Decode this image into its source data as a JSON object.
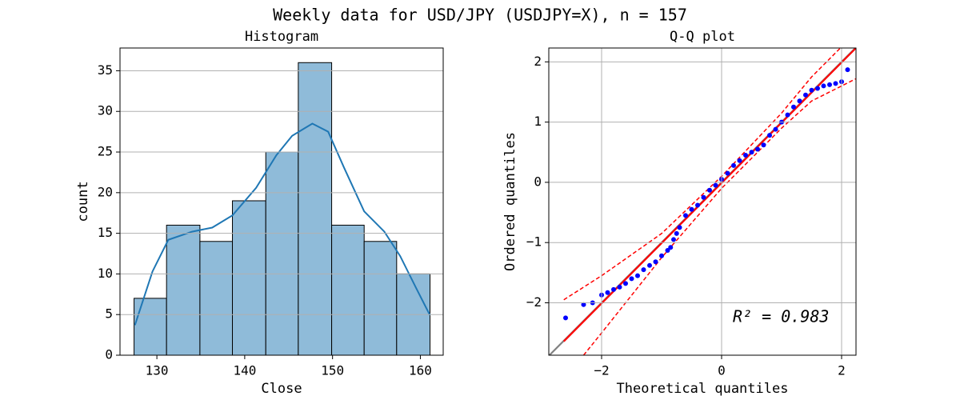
{
  "title": "Weekly data for USD/JPY (USDJPY=X), n = 157",
  "chart_data": [
    {
      "type": "histogram",
      "title": "Histogram",
      "xlabel": "Close",
      "ylabel": "count",
      "bins": [
        127.4,
        131.1,
        134.9,
        138.6,
        142.4,
        146.1,
        149.9,
        153.6,
        157.3,
        161.1
      ],
      "counts": [
        7,
        16,
        14,
        19,
        25,
        36,
        16,
        14,
        10
      ],
      "color": "#8fbbd9",
      "edgecolor": "#000000",
      "kde": {
        "color": "#1f77b4",
        "x": [
          127.5,
          129.5,
          131.3,
          134.0,
          136.3,
          138.6,
          141.3,
          143.6,
          145.4,
          147.7,
          149.5,
          151.3,
          153.6,
          155.9,
          157.7,
          159.5,
          161.1
        ],
        "values": [
          3.7,
          10.3,
          14.2,
          15.2,
          15.7,
          17.2,
          20.6,
          24.6,
          27.0,
          28.5,
          27.5,
          23.1,
          17.7,
          15.2,
          12.2,
          8.3,
          4.9
        ]
      },
      "xlim": [
        125.8,
        162.6
      ],
      "ylim": [
        0,
        37.8
      ],
      "xticks": [
        130,
        140,
        150,
        160
      ],
      "yticks": [
        0,
        5,
        10,
        15,
        20,
        25,
        30,
        35
      ],
      "grid": "y"
    },
    {
      "type": "scatter",
      "title": "Q-Q plot",
      "xlabel": "Theoretical quantiles",
      "ylabel": "Ordered quantiles",
      "series": [
        {
          "color": "#0000ff",
          "x": [
            -2.6,
            -2.3,
            -2.15,
            -2.0,
            -1.9,
            -1.8,
            -1.7,
            -1.6,
            -1.5,
            -1.4,
            -1.3,
            -1.2,
            -1.1,
            -1.0,
            -0.9,
            -0.85,
            -0.8,
            -0.75,
            -0.7,
            -0.6,
            -0.5,
            -0.4,
            -0.3,
            -0.2,
            -0.1,
            0,
            0.1,
            0.2,
            0.3,
            0.4,
            0.5,
            0.6,
            0.7,
            0.8,
            0.9,
            1.0,
            1.1,
            1.2,
            1.3,
            1.4,
            1.5,
            1.6,
            1.7,
            1.8,
            1.9,
            2.0,
            2.1
          ],
          "values": [
            -2.25,
            -2.03,
            -2.0,
            -1.87,
            -1.83,
            -1.78,
            -1.74,
            -1.68,
            -1.6,
            -1.55,
            -1.45,
            -1.38,
            -1.32,
            -1.22,
            -1.13,
            -1.08,
            -0.95,
            -0.85,
            -0.75,
            -0.55,
            -0.45,
            -0.38,
            -0.25,
            -0.13,
            -0.05,
            0.05,
            0.15,
            0.28,
            0.36,
            0.45,
            0.5,
            0.55,
            0.62,
            0.78,
            0.88,
            1.0,
            1.12,
            1.25,
            1.35,
            1.45,
            1.53,
            1.56,
            1.6,
            1.62,
            1.64,
            1.67,
            1.87
          ]
        }
      ],
      "lines": [
        {
          "color": "#808080",
          "style": "solid",
          "x": [
            -2.88,
            2.24
          ],
          "values": [
            -2.88,
            2.24
          ]
        },
        {
          "color": "#ff0000",
          "style": "solid",
          "x": [
            -2.63,
            2.24
          ],
          "values": [
            -2.64,
            2.23
          ]
        },
        {
          "color": "#ff0000",
          "style": "dashed",
          "x": [
            -2.63,
            -2.0,
            -1.0,
            0,
            1.0,
            1.5,
            2.0
          ],
          "values": [
            -1.95,
            -1.55,
            -0.85,
            0.1,
            1.15,
            1.75,
            2.25
          ]
        },
        {
          "color": "#ff0000",
          "style": "dashed",
          "x": [
            -2.3,
            -2.0,
            -1.0,
            0,
            1.0,
            1.5,
            2.24
          ],
          "values": [
            -2.87,
            -2.5,
            -1.25,
            -0.1,
            0.9,
            1.35,
            1.72
          ]
        }
      ],
      "annotation": "R² = 0.983",
      "xlim": [
        -2.88,
        2.24
      ],
      "ylim": [
        -2.87,
        2.23
      ],
      "xticks": [
        {
          "value": -2,
          "label": "−2"
        },
        0,
        2
      ],
      "yticks": [
        {
          "value": -2,
          "label": "−2"
        },
        {
          "value": -1,
          "label": "−1"
        },
        0,
        1,
        2
      ],
      "grid": "both"
    }
  ]
}
